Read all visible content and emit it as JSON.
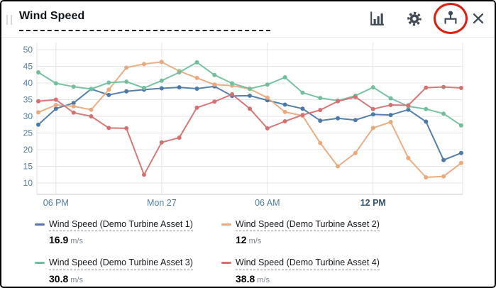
{
  "widget": {
    "title": "Wind Speed",
    "toolbar": {
      "icons": [
        "bar-chart",
        "settings-gear",
        "asset-tree",
        "close"
      ],
      "annotation": {
        "shape": "red-ellipse",
        "around": "asset-tree-icon",
        "color": "#e01d10"
      }
    }
  },
  "legend": {
    "items": [
      {
        "label": "Wind Speed (Demo Turbine Asset 1)",
        "value": "16.9",
        "unit": "m/s",
        "color": "#4b79a8"
      },
      {
        "label": "Wind Speed (Demo Turbine Asset 2)",
        "value": "12",
        "unit": "m/s",
        "color": "#e9a97d"
      },
      {
        "label": "Wind Speed (Demo Turbine Asset 3)",
        "value": "30.8",
        "unit": "m/s",
        "color": "#72bf9e"
      },
      {
        "label": "Wind Speed (Demo Turbine Asset 4)",
        "value": "38.8",
        "unit": "m/s",
        "color": "#d37170"
      }
    ]
  },
  "chart_data": {
    "type": "line",
    "title": "Wind Speed",
    "ylabel": "",
    "xlabel": "",
    "ylim": [
      10,
      50
    ],
    "grid": true,
    "legend_position": "bottom",
    "y_ticks": [
      10,
      15,
      20,
      25,
      30,
      35,
      40,
      45,
      50
    ],
    "x_ticks": [
      {
        "label": "06 PM",
        "index": 1,
        "bold": false
      },
      {
        "label": "Mon 27",
        "index": 7,
        "bold": false
      },
      {
        "label": "06 AM",
        "index": 13,
        "bold": false
      },
      {
        "label": "12 PM",
        "index": 19,
        "bold": true
      }
    ],
    "x_unit": "hours",
    "series": [
      {
        "name": "Wind Speed (Demo Turbine Asset 1)",
        "color": "#4b79a8",
        "values": [
          27.5,
          32.3,
          34.0,
          38.2,
          36.4,
          37.5,
          38.0,
          38.4,
          38.7,
          38.3,
          39.0,
          36.1,
          36.2,
          34.8,
          33.5,
          32.3,
          28.7,
          29.4,
          28.9,
          30.6,
          30.4,
          32.0,
          28.4,
          16.9,
          19.0
        ]
      },
      {
        "name": "Wind Speed (Demo Turbine Asset 2)",
        "color": "#e9a97d",
        "values": [
          31.2,
          33.4,
          33.0,
          32.0,
          38.0,
          44.6,
          45.7,
          46.3,
          43.6,
          41.5,
          39.5,
          39.2,
          38.2,
          35.6,
          31.3,
          30.2,
          22.0,
          15.0,
          19.0,
          26.5,
          28.3,
          17.5,
          11.7,
          12.0,
          16.0
        ]
      },
      {
        "name": "Wind Speed (Demo Turbine Asset 3)",
        "color": "#72bf9e",
        "values": [
          43.2,
          39.9,
          38.9,
          38.2,
          40.1,
          40.4,
          38.5,
          40.7,
          43.2,
          46.2,
          42.4,
          39.9,
          38.3,
          39.5,
          41.7,
          37.1,
          35.5,
          34.7,
          36.2,
          38.7,
          35.4,
          33.0,
          32.2,
          30.8,
          27.3
        ]
      },
      {
        "name": "Wind Speed (Demo Turbine Asset 4)",
        "color": "#d37170",
        "values": [
          34.5,
          35.0,
          31.1,
          30.0,
          26.5,
          26.4,
          12.5,
          22.2,
          23.6,
          32.6,
          34.4,
          36.6,
          32.3,
          26.4,
          28.5,
          30.4,
          31.9,
          34.5,
          35.8,
          32.2,
          33.4,
          33.3,
          38.6,
          38.8,
          38.5
        ]
      }
    ],
    "axis_label_color": "#4e7ea8",
    "axis_label_bold_color": "#33536e",
    "gridline_color": "#e4e6e8",
    "axisline_color": "#d0d4d8"
  }
}
